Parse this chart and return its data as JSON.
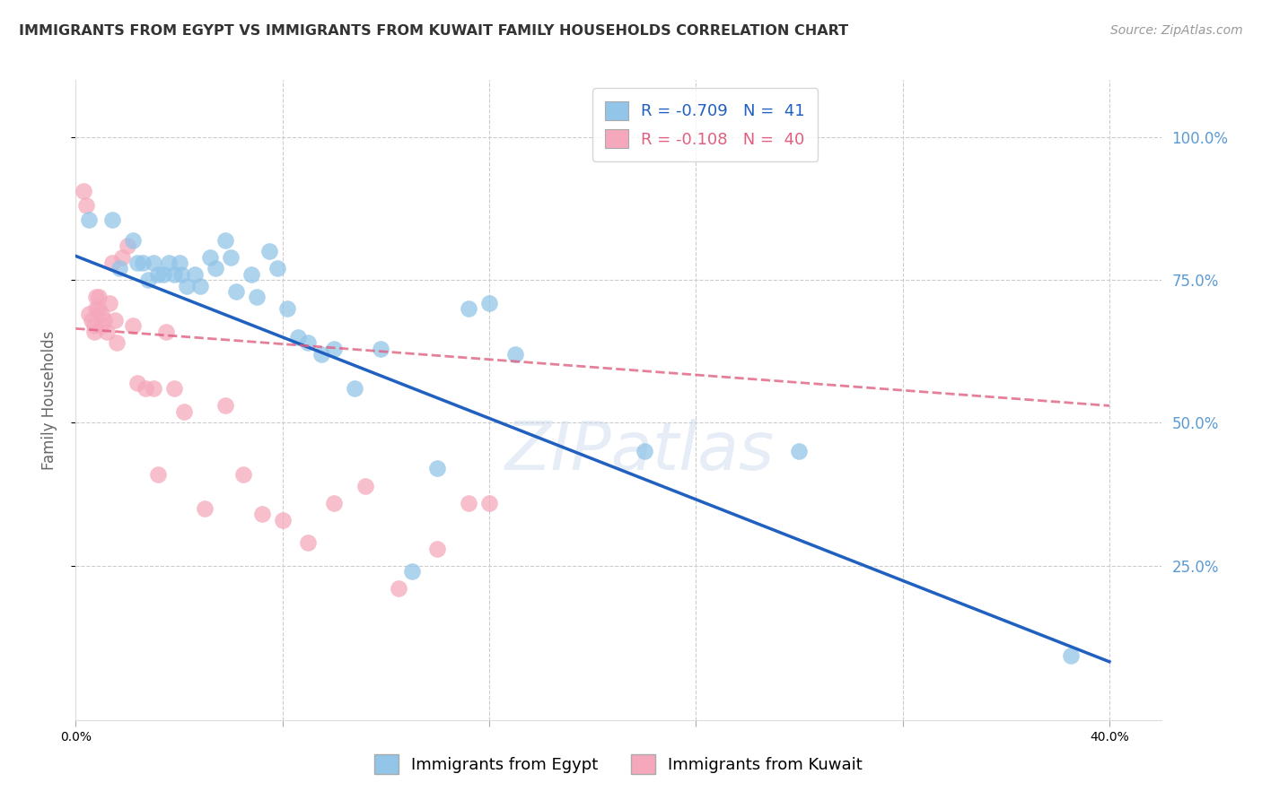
{
  "title": "IMMIGRANTS FROM EGYPT VS IMMIGRANTS FROM KUWAIT FAMILY HOUSEHOLDS CORRELATION CHART",
  "source": "Source: ZipAtlas.com",
  "ylabel": "Family Households",
  "xlim": [
    0.0,
    0.42
  ],
  "ylim": [
    -0.02,
    1.1
  ],
  "xticks": [
    0.0,
    0.4
  ],
  "yticks": [
    0.25,
    0.5,
    0.75,
    1.0
  ],
  "right_ytick_labels": [
    "25.0%",
    "50.0%",
    "75.0%",
    "100.0%"
  ],
  "egypt_color": "#92C5E8",
  "kuwait_color": "#F5A8BC",
  "egypt_line_color": "#2060C0",
  "kuwait_line_color": "#E06080",
  "legend_R_egypt": "-0.709",
  "legend_N_egypt": "41",
  "legend_R_kuwait": "-0.108",
  "legend_N_kuwait": "40",
  "watermark": "ZIPatlas",
  "egypt_x": [
    0.005,
    0.014,
    0.017,
    0.022,
    0.024,
    0.026,
    0.028,
    0.03,
    0.032,
    0.034,
    0.036,
    0.038,
    0.04,
    0.041,
    0.043,
    0.046,
    0.048,
    0.052,
    0.054,
    0.058,
    0.06,
    0.062,
    0.068,
    0.07,
    0.075,
    0.078,
    0.082,
    0.086,
    0.09,
    0.095,
    0.1,
    0.108,
    0.118,
    0.13,
    0.14,
    0.152,
    0.16,
    0.17,
    0.22,
    0.28,
    0.385
  ],
  "egypt_y": [
    0.855,
    0.855,
    0.77,
    0.82,
    0.78,
    0.78,
    0.75,
    0.78,
    0.76,
    0.76,
    0.78,
    0.76,
    0.78,
    0.76,
    0.74,
    0.76,
    0.74,
    0.79,
    0.77,
    0.82,
    0.79,
    0.73,
    0.76,
    0.72,
    0.8,
    0.77,
    0.7,
    0.65,
    0.64,
    0.62,
    0.63,
    0.56,
    0.63,
    0.24,
    0.42,
    0.7,
    0.71,
    0.62,
    0.45,
    0.45,
    0.092
  ],
  "kuwait_x": [
    0.003,
    0.004,
    0.005,
    0.006,
    0.007,
    0.007,
    0.008,
    0.008,
    0.009,
    0.009,
    0.01,
    0.01,
    0.011,
    0.012,
    0.013,
    0.014,
    0.015,
    0.016,
    0.018,
    0.02,
    0.022,
    0.024,
    0.027,
    0.03,
    0.032,
    0.035,
    0.038,
    0.042,
    0.05,
    0.058,
    0.065,
    0.072,
    0.08,
    0.09,
    0.1,
    0.112,
    0.125,
    0.14,
    0.152,
    0.16
  ],
  "kuwait_y": [
    0.905,
    0.88,
    0.69,
    0.68,
    0.67,
    0.66,
    0.72,
    0.7,
    0.72,
    0.7,
    0.69,
    0.67,
    0.68,
    0.66,
    0.71,
    0.78,
    0.68,
    0.64,
    0.79,
    0.81,
    0.67,
    0.57,
    0.56,
    0.56,
    0.41,
    0.66,
    0.56,
    0.52,
    0.35,
    0.53,
    0.41,
    0.34,
    0.33,
    0.29,
    0.36,
    0.39,
    0.21,
    0.28,
    0.36,
    0.36
  ],
  "egypt_trend_x": [
    0.0,
    0.4
  ],
  "egypt_trend_y": [
    0.792,
    0.082
  ],
  "kuwait_trend_x": [
    0.0,
    0.4
  ],
  "kuwait_trend_y": [
    0.665,
    0.53
  ],
  "background_color": "#FFFFFF",
  "grid_color": "#CCCCCC"
}
